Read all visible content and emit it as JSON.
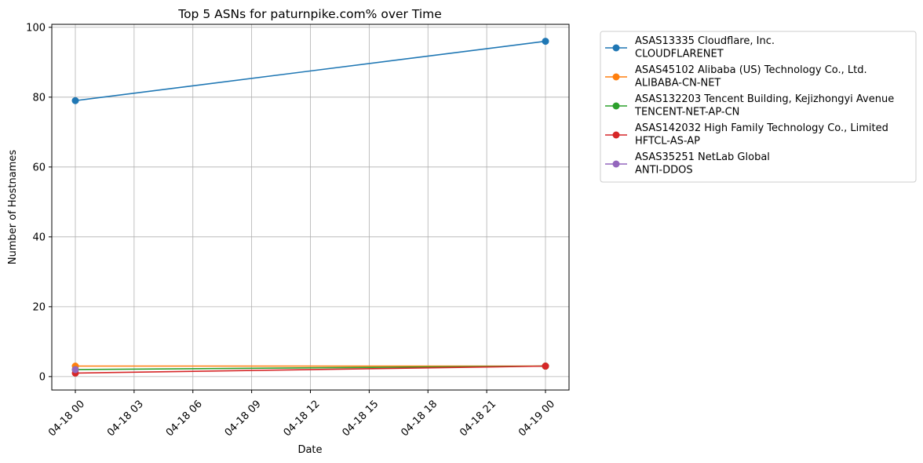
{
  "chart_data": {
    "type": "line",
    "title": "Top 5 ASNs for paturnpike.com% over Time",
    "xlabel": "Date",
    "ylabel": "Number of Hostnames",
    "x": [
      "2024-04-18 00:00",
      "2024-04-19 00:00"
    ],
    "x_ticks": [
      "04-18 00",
      "04-18 03",
      "04-18 06",
      "04-18 09",
      "04-18 12",
      "04-18 15",
      "04-18 18",
      "04-18 21",
      "04-19 00"
    ],
    "y_ticks": [
      0,
      20,
      40,
      60,
      80,
      100
    ],
    "ylim": [
      -3.85,
      100.85
    ],
    "grid": true,
    "legend_position": "outside-upper-right",
    "series": [
      {
        "name": "ASAS13335 Cloudflare, Inc.\nCLOUDFLARENET",
        "color": "#1f77b4",
        "values": [
          79,
          96
        ]
      },
      {
        "name": "ASAS45102 Alibaba (US) Technology Co., Ltd.\nALIBABA-CN-NET",
        "color": "#ff7f0e",
        "values": [
          3,
          3
        ]
      },
      {
        "name": "ASAS132203 Tencent Building, Kejizhongyi Avenue\nTENCENT-NET-AP-CN",
        "color": "#2ca02c",
        "values": [
          2,
          3
        ]
      },
      {
        "name": "ASAS142032 High Family Technology Co., Limited\nHFTCL-AS-AP",
        "color": "#d62728",
        "values": [
          1,
          3
        ]
      },
      {
        "name": "ASAS35251 NetLab Global\nANTI-DDOS",
        "color": "#9467bd",
        "values": [
          2,
          null
        ]
      }
    ]
  }
}
